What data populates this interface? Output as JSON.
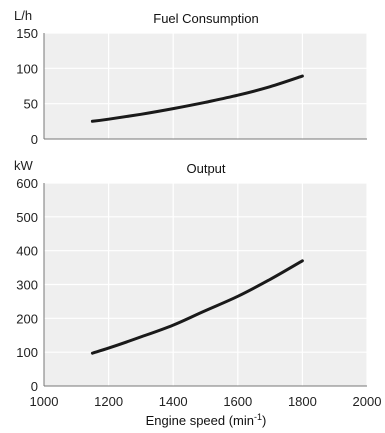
{
  "chart_data": [
    {
      "type": "line",
      "title": "Fuel Consumption",
      "ylabel": "L/h",
      "xlabel": "",
      "xlim": [
        1000,
        2000
      ],
      "ylim": [
        0,
        150
      ],
      "yticks": [
        0,
        50,
        100,
        150
      ],
      "xticks": [
        1000,
        1200,
        1400,
        1600,
        1800,
        2000
      ],
      "grid": true,
      "x": [
        1150,
        1200,
        1300,
        1400,
        1500,
        1600,
        1700,
        1800
      ],
      "values": [
        25,
        28,
        35,
        43,
        52,
        62,
        74,
        89
      ],
      "color": "#1a1a1a"
    },
    {
      "type": "line",
      "title": "Output",
      "ylabel": "kW",
      "xlabel": "Engine speed (min",
      "xlabel_sup": "-1",
      "xlabel_end": ")",
      "xlim": [
        1000,
        2000
      ],
      "ylim": [
        0,
        600
      ],
      "yticks": [
        0,
        100,
        200,
        300,
        400,
        500,
        600
      ],
      "xticks": [
        1000,
        1200,
        1400,
        1600,
        1800,
        2000
      ],
      "grid": true,
      "x": [
        1150,
        1200,
        1300,
        1400,
        1500,
        1600,
        1700,
        1800
      ],
      "values": [
        97,
        112,
        145,
        180,
        223,
        265,
        315,
        370
      ],
      "color": "#1a1a1a"
    }
  ]
}
